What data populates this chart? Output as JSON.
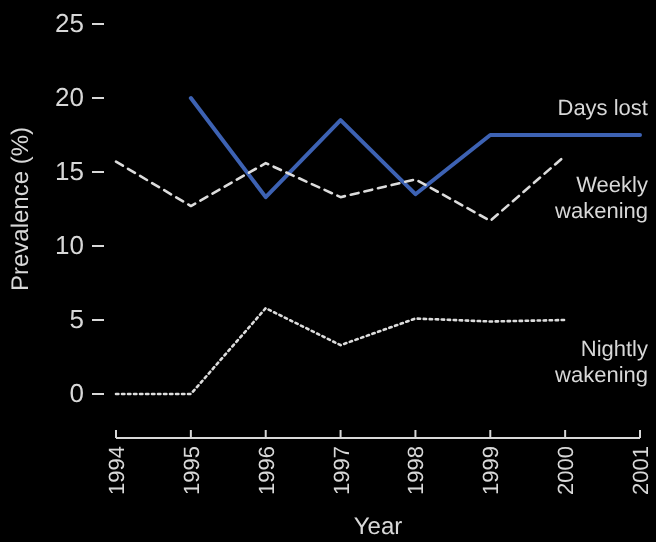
{
  "chart_data": {
    "type": "line",
    "xlabel": "Year",
    "ylabel": "Prevalence (%)",
    "x": [
      1994,
      1995,
      1996,
      1997,
      1998,
      1999,
      2000,
      2001
    ],
    "xlim": [
      1994,
      2001
    ],
    "xticks": [
      1994,
      1995,
      1996,
      1997,
      1998,
      1999,
      2000,
      2001
    ],
    "ylim": [
      0,
      25
    ],
    "yticks": [
      0,
      5,
      10,
      15,
      20,
      25
    ],
    "grid": false,
    "marker": "none",
    "series": [
      {
        "name": "Days lost",
        "color": "#3d62b3",
        "line_style": "solid",
        "values": [
          null,
          20,
          13.3,
          18.5,
          13.5,
          17.5,
          17.5,
          17.5
        ]
      },
      {
        "name": "Weekly\nwakening",
        "color": "#dcdcdc",
        "line_style": "dashed",
        "values": [
          15.7,
          12.7,
          15.6,
          13.3,
          14.5,
          11.7,
          16.1,
          null
        ]
      },
      {
        "name": "Nightly\nwakening",
        "color": "#dcdcdc",
        "line_style": "dotted",
        "values": [
          0,
          0,
          5.8,
          3.3,
          5.1,
          4.9,
          5.0,
          null
        ]
      }
    ]
  }
}
